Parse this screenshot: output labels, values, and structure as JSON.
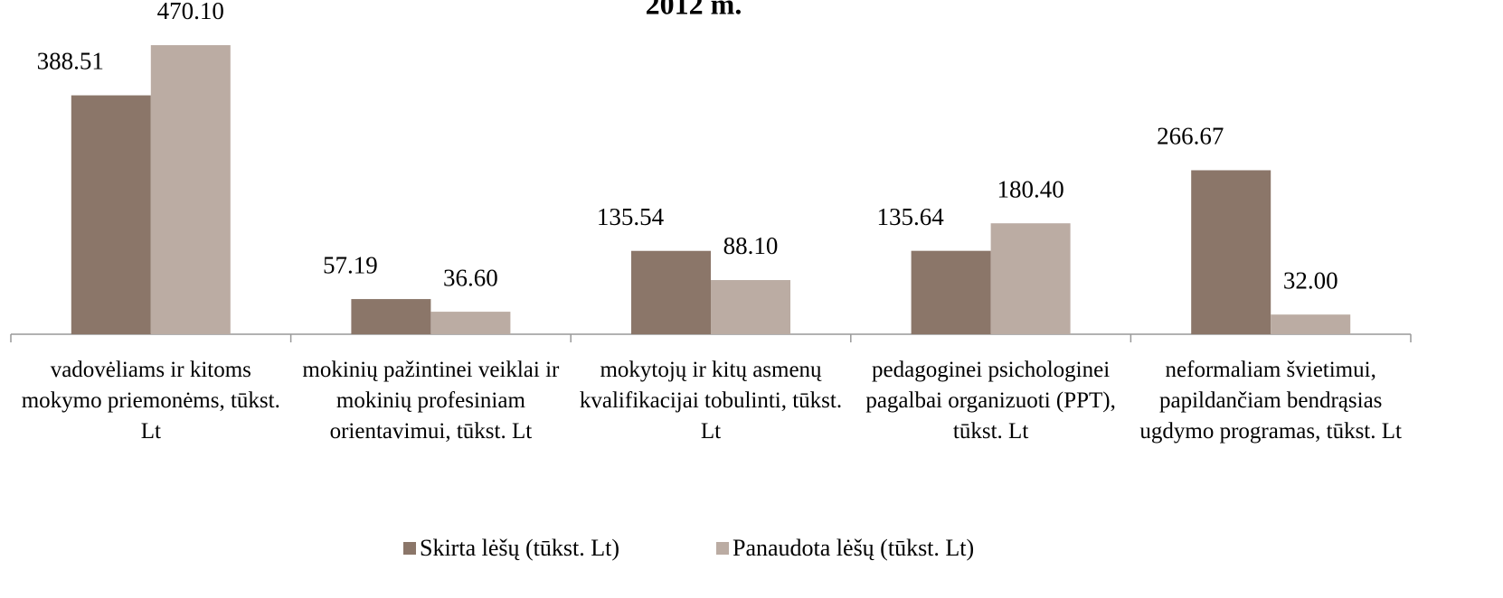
{
  "chart_data": {
    "type": "bar",
    "title": "2012 m.",
    "categories": [
      "vadovėliams ir kitoms mokymo priemonėms, tūkst. Lt",
      "mokinių pažintinei veiklai ir mokinių profesiniam orientavimui, tūkst. Lt",
      "mokytojų ir kitų asmenų kvalifikacijai tobulinti, tūkst. Lt",
      "pedagoginei psichologinei pagalbai organizuoti (PPT), tūkst. Lt",
      "neformaliam švietimui, papildančiam bendrąsias ugdymo programas, tūkst. Lt"
    ],
    "series": [
      {
        "name": "Skirta lėšų (tūkst. Lt)",
        "color": "#8b7669",
        "values": [
          388.51,
          57.19,
          135.54,
          135.64,
          266.67
        ],
        "value_labels": [
          "388.51",
          "57.19",
          "135.54",
          "135.64",
          "266.67"
        ]
      },
      {
        "name": "Panaudota lėšų (tūkst. Lt)",
        "color": "#bbaca3",
        "values": [
          470.1,
          36.6,
          88.1,
          180.4,
          32.0
        ],
        "value_labels": [
          "470.10",
          "36.60",
          "88.10",
          "180.40",
          "32.00"
        ]
      }
    ],
    "legend": "bottom"
  }
}
